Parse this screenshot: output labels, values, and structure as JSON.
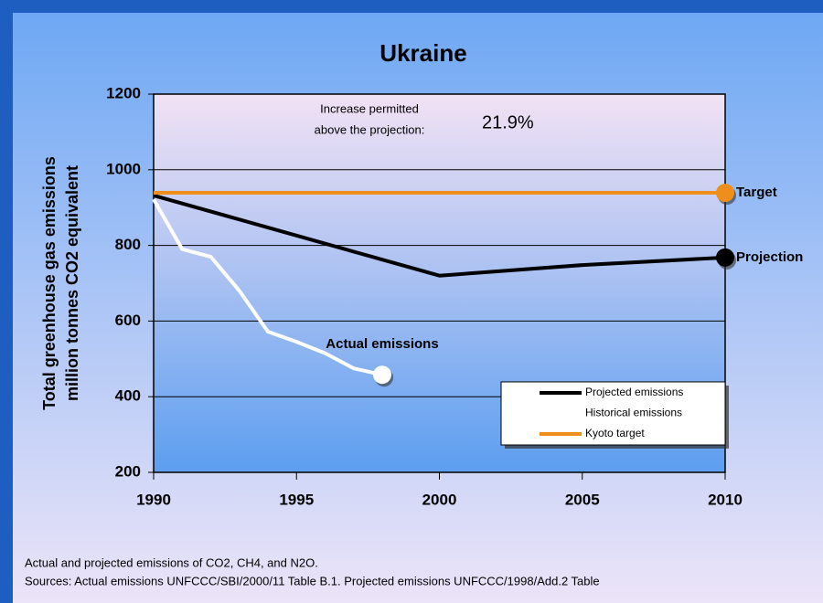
{
  "chart_data": {
    "type": "line",
    "title": "Ukraine",
    "y_label": [
      "Total greenhouse gas emissions",
      "million tonnes CO2 equivalent"
    ],
    "annotation": {
      "text": [
        "Increase permitted",
        "above the projection:"
      ],
      "value_label": "21.9%"
    },
    "series": [
      {
        "name": "Projected emissions",
        "color": "#000000",
        "end_label": "Projection",
        "x": [
          1990,
          2000,
          2005,
          2010
        ],
        "values": [
          932,
          720,
          748,
          768
        ]
      },
      {
        "name": "Historical emissions",
        "color": "#ffffff",
        "end_label": "Actual emissions",
        "x": [
          1990,
          1991,
          1992,
          1993,
          1994,
          1995,
          1996,
          1997,
          1998
        ],
        "values": [
          922,
          790,
          770,
          680,
          572,
          545,
          515,
          475,
          458
        ]
      },
      {
        "name": "Kyoto target",
        "color": "#ee8f1c",
        "end_label": "Target",
        "x": [
          1990,
          2010
        ],
        "values": [
          939,
          939
        ]
      }
    ],
    "xlim": [
      1990,
      2010
    ],
    "xticks": [
      1990,
      1995,
      2000,
      2005,
      2010
    ],
    "ylim": [
      200,
      1200
    ],
    "yticks": [
      200,
      400,
      600,
      800,
      1000,
      1200
    ],
    "grid": true,
    "legend": "lower right",
    "footnote": [
      "Actual and projected emissions of CO2, CH4, and N2O.",
      "Sources: Actual emissions UNFCCC/SBI/2000/11 Table B.1.  Projected emissions UNFCCC/1998/Add.2 Table"
    ]
  }
}
